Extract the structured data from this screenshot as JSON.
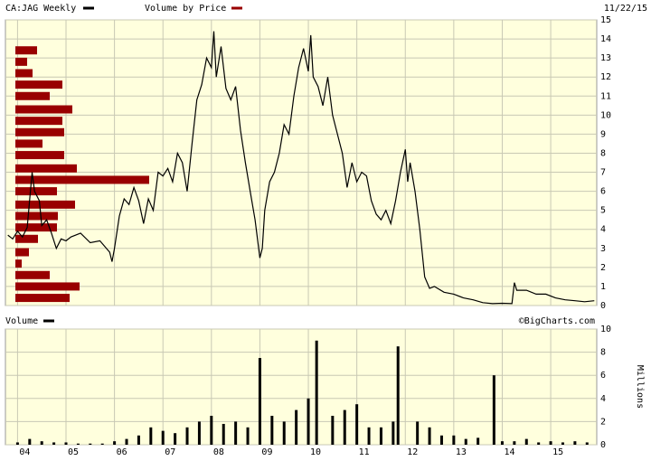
{
  "chart_data": [
    {
      "type": "line",
      "date_label": "11/22/15",
      "watermark": "©BigCharts.com",
      "xlim": [
        2003.75,
        2015.95
      ],
      "ylim": [
        0,
        15
      ],
      "yticks": [
        0,
        1,
        2,
        3,
        4,
        5,
        6,
        7,
        8,
        9,
        10,
        11,
        12,
        13,
        14,
        15
      ],
      "grid": true,
      "x": [
        2003.8,
        2003.9,
        2004.0,
        2004.1,
        2004.2,
        2004.3,
        2004.35,
        2004.45,
        2004.5,
        2004.6,
        2004.7,
        2004.8,
        2004.9,
        2005.0,
        2005.1,
        2005.3,
        2005.5,
        2005.7,
        2005.9,
        2005.95,
        2006.0,
        2006.1,
        2006.2,
        2006.3,
        2006.4,
        2006.5,
        2006.6,
        2006.7,
        2006.8,
        2006.9,
        2007.0,
        2007.1,
        2007.2,
        2007.3,
        2007.4,
        2007.5,
        2007.6,
        2007.7,
        2007.8,
        2007.9,
        2008.0,
        2008.05,
        2008.1,
        2008.2,
        2008.3,
        2008.4,
        2008.5,
        2008.6,
        2008.7,
        2008.8,
        2008.9,
        2009.0,
        2009.05,
        2009.1,
        2009.2,
        2009.3,
        2009.4,
        2009.5,
        2009.6,
        2009.7,
        2009.8,
        2009.9,
        2010.0,
        2010.05,
        2010.1,
        2010.2,
        2010.3,
        2010.4,
        2010.5,
        2010.6,
        2010.7,
        2010.8,
        2010.9,
        2011.0,
        2011.1,
        2011.2,
        2011.3,
        2011.4,
        2011.5,
        2011.6,
        2011.7,
        2011.8,
        2011.9,
        2012.0,
        2012.05,
        2012.1,
        2012.2,
        2012.3,
        2012.4,
        2012.5,
        2012.6,
        2012.8,
        2013.0,
        2013.2,
        2013.4,
        2013.6,
        2013.8,
        2014.0,
        2014.2,
        2014.25,
        2014.3,
        2014.5,
        2014.7,
        2014.9,
        2015.1,
        2015.3,
        2015.5,
        2015.7,
        2015.9
      ],
      "series": [
        {
          "name": "CA:JAG Weekly",
          "color": "#000000",
          "values": [
            3.7,
            3.5,
            3.9,
            3.6,
            4.1,
            7.0,
            6.0,
            5.5,
            4.2,
            4.5,
            3.8,
            3.0,
            3.5,
            3.4,
            3.6,
            3.8,
            3.3,
            3.4,
            2.8,
            2.3,
            3.0,
            4.7,
            5.6,
            5.3,
            6.2,
            5.5,
            4.3,
            5.6,
            5.0,
            7.0,
            6.8,
            7.2,
            6.5,
            8.0,
            7.5,
            6.0,
            8.5,
            10.8,
            11.6,
            13.0,
            12.5,
            14.4,
            12.0,
            13.6,
            11.4,
            10.8,
            11.5,
            9.2,
            7.5,
            6.0,
            4.5,
            2.5,
            3.0,
            5.0,
            6.5,
            7.0,
            8.0,
            9.5,
            9.0,
            11.0,
            12.5,
            13.5,
            12.3,
            14.2,
            12.0,
            11.5,
            10.5,
            12.0,
            10.0,
            9.0,
            8.0,
            6.2,
            7.5,
            6.5,
            7.0,
            6.8,
            5.5,
            4.8,
            4.5,
            5.0,
            4.3,
            5.5,
            7.0,
            8.2,
            6.5,
            7.5,
            6.0,
            4.0,
            1.5,
            0.9,
            1.0,
            0.7,
            0.6,
            0.4,
            0.3,
            0.15,
            0.1,
            0.12,
            0.1,
            1.2,
            0.8,
            0.8,
            0.6,
            0.6,
            0.4,
            0.3,
            0.25,
            0.2,
            0.25
          ]
        }
      ],
      "volume_by_price": {
        "name": "Volume by Price",
        "color": "#990000",
        "prices": [
          13.4,
          12.8,
          12.2,
          11.6,
          11.0,
          10.3,
          9.7,
          9.1,
          8.5,
          7.9,
          7.2,
          6.6,
          6.0,
          5.3,
          4.7,
          4.1,
          3.5,
          2.8,
          2.2,
          1.6,
          1.0,
          0.4
        ],
        "values": [
          24,
          13,
          19,
          52,
          38,
          63,
          52,
          54,
          30,
          54,
          68,
          148,
          46,
          66,
          47,
          46,
          25,
          15,
          7,
          38,
          71,
          60
        ]
      }
    },
    {
      "type": "bar",
      "ylabel": "Millions",
      "xlim": [
        2003.75,
        2015.95
      ],
      "ylim": [
        0,
        10
      ],
      "yticks": [
        0,
        2,
        4,
        6,
        8,
        10
      ],
      "grid": true,
      "xticks": [
        {
          "value": 2004,
          "label": "04"
        },
        {
          "value": 2005,
          "label": "05"
        },
        {
          "value": 2006,
          "label": "06"
        },
        {
          "value": 2007,
          "label": "07"
        },
        {
          "value": 2008,
          "label": "08"
        },
        {
          "value": 2009,
          "label": "09"
        },
        {
          "value": 2010,
          "label": "10"
        },
        {
          "value": 2011,
          "label": "11"
        },
        {
          "value": 2012,
          "label": "12"
        },
        {
          "value": 2013,
          "label": "13"
        },
        {
          "value": 2014,
          "label": "14"
        },
        {
          "value": 2015,
          "label": "15"
        }
      ],
      "x": [
        2004.0,
        2004.25,
        2004.5,
        2004.75,
        2005.0,
        2005.25,
        2005.5,
        2005.75,
        2006.0,
        2006.25,
        2006.5,
        2006.75,
        2007.0,
        2007.25,
        2007.5,
        2007.75,
        2008.0,
        2008.25,
        2008.5,
        2008.75,
        2009.0,
        2009.25,
        2009.5,
        2009.75,
        2010.0,
        2010.17,
        2010.5,
        2010.75,
        2011.0,
        2011.25,
        2011.5,
        2011.75,
        2011.85,
        2012.25,
        2012.5,
        2012.75,
        2013.0,
        2013.25,
        2013.5,
        2013.83,
        2014.0,
        2014.25,
        2014.5,
        2014.75,
        2015.0,
        2015.25,
        2015.5,
        2015.75
      ],
      "series": [
        {
          "name": "Volume",
          "color": "#000000",
          "values": [
            0.2,
            0.5,
            0.3,
            0.2,
            0.2,
            0.1,
            0.1,
            0.1,
            0.3,
            0.5,
            0.8,
            1.5,
            1.2,
            1.0,
            1.5,
            2.0,
            2.5,
            1.8,
            2.0,
            1.5,
            7.5,
            2.5,
            2.0,
            3.0,
            4.0,
            9.0,
            2.5,
            3.0,
            3.5,
            1.5,
            1.5,
            2.0,
            8.5,
            2.0,
            1.5,
            0.8,
            0.8,
            0.5,
            0.6,
            6.0,
            0.3,
            0.3,
            0.5,
            0.2,
            0.3,
            0.2,
            0.3,
            0.2
          ]
        }
      ]
    }
  ]
}
